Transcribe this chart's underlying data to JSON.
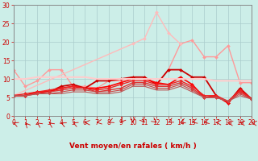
{
  "x": [
    0,
    1,
    2,
    3,
    4,
    5,
    6,
    7,
    8,
    9,
    10,
    11,
    12,
    13,
    14,
    15,
    16,
    17,
    18,
    19,
    20
  ],
  "series": [
    {
      "y": [
        12.5,
        8.0,
        9.5,
        12.5,
        12.5,
        8.0,
        8.0,
        7.5,
        9.5,
        9.5,
        10.5,
        10.5,
        8.5,
        12.5,
        19.5,
        20.5,
        16.0,
        16.0,
        19.0,
        9.0,
        9.0
      ],
      "color": "#ff9999",
      "lw": 1.0,
      "marker": "D",
      "ms": 2.0
    },
    {
      "y": [
        5.5,
        null,
        null,
        null,
        null,
        null,
        null,
        null,
        null,
        null,
        19.5,
        21.0,
        28.0,
        22.5,
        19.5,
        null,
        null,
        null,
        null,
        null,
        null
      ],
      "color": "#ffbbbb",
      "lw": 1.0,
      "marker": "D",
      "ms": 2.0
    },
    {
      "y": [
        5.5,
        5.5,
        6.5,
        6.5,
        8.0,
        8.5,
        7.5,
        9.5,
        9.5,
        10.0,
        10.5,
        10.5,
        8.5,
        12.5,
        12.5,
        10.5,
        10.5,
        5.5,
        3.5,
        7.5,
        4.5
      ],
      "color": "#cc0000",
      "lw": 1.3,
      "marker": "D",
      "ms": 2.0
    },
    {
      "y": [
        5.5,
        5.5,
        6.5,
        6.5,
        7.5,
        8.0,
        7.5,
        7.5,
        8.0,
        9.0,
        10.0,
        10.0,
        9.0,
        8.5,
        10.5,
        8.5,
        5.0,
        5.5,
        3.5,
        7.0,
        4.5
      ],
      "color": "#ff0000",
      "lw": 1.2,
      "marker": "D",
      "ms": 2.0
    },
    {
      "y": [
        5.5,
        6.0,
        6.5,
        7.0,
        7.5,
        8.0,
        7.5,
        7.0,
        7.5,
        8.5,
        9.5,
        9.5,
        8.5,
        8.5,
        9.5,
        8.0,
        5.5,
        5.5,
        4.0,
        7.0,
        4.5
      ],
      "color": "#ee2222",
      "lw": 1.0,
      "marker": "D",
      "ms": 2.0
    },
    {
      "y": [
        5.5,
        5.5,
        6.0,
        6.5,
        7.0,
        7.5,
        7.5,
        6.5,
        7.0,
        7.5,
        9.0,
        9.0,
        8.0,
        8.0,
        9.0,
        7.5,
        5.0,
        5.0,
        4.0,
        6.5,
        4.5
      ],
      "color": "#dd3333",
      "lw": 1.0,
      "marker": "D",
      "ms": 2.0
    },
    {
      "y": [
        5.5,
        5.5,
        6.0,
        6.0,
        6.5,
        7.0,
        7.0,
        6.5,
        6.5,
        7.0,
        8.5,
        8.5,
        7.5,
        7.5,
        8.5,
        7.0,
        5.0,
        5.0,
        4.0,
        6.0,
        4.5
      ],
      "color": "#cc4444",
      "lw": 0.8,
      "marker": "D",
      "ms": 1.5
    },
    {
      "y": [
        5.5,
        5.5,
        6.0,
        6.0,
        6.0,
        6.5,
        6.5,
        6.0,
        6.0,
        6.5,
        8.0,
        8.0,
        7.0,
        7.0,
        8.0,
        6.5,
        5.0,
        5.0,
        4.0,
        5.5,
        4.5
      ],
      "color": "#bb5555",
      "lw": 0.8,
      "marker": null,
      "ms": 0
    },
    {
      "y": [
        10.0,
        10.0,
        10.5,
        10.5,
        10.5,
        10.5,
        10.5,
        10.0,
        10.0,
        10.0,
        10.0,
        10.0,
        10.0,
        10.0,
        10.0,
        10.0,
        10.0,
        9.5,
        9.5,
        9.5,
        9.5
      ],
      "color": "#ffcccc",
      "lw": 1.5,
      "marker": null,
      "ms": 0
    }
  ],
  "xlabel": "Vent moyen/en rafales ( km/h )",
  "xlim": [
    0,
    20
  ],
  "ylim": [
    0,
    30
  ],
  "yticks": [
    0,
    5,
    10,
    15,
    20,
    25,
    30
  ],
  "xticks": [
    0,
    1,
    2,
    3,
    4,
    5,
    6,
    7,
    8,
    9,
    10,
    11,
    12,
    13,
    14,
    15,
    16,
    17,
    18,
    19,
    20
  ],
  "bg_color": "#cceee8",
  "grid_color": "#aacccc",
  "axis_color": "#888888",
  "label_color": "#cc0000",
  "tick_color": "#cc0000",
  "tick_fontsize": 5.5,
  "xlabel_fontsize": 6.5
}
